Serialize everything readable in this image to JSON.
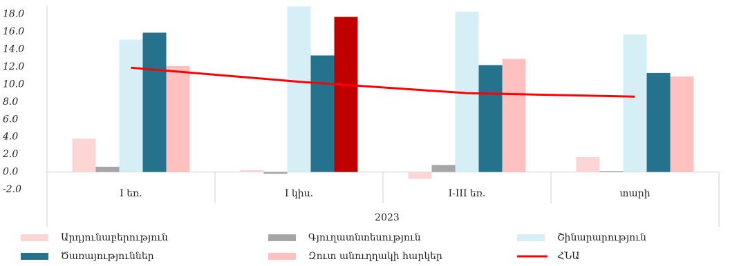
{
  "chart_data": {
    "type": "bar",
    "x_label": "2023",
    "categories": [
      "I եռ.",
      "I կիս.",
      "I-III եռ.",
      "տարի"
    ],
    "series": [
      {
        "name": "Արդյունաբերություն",
        "color": "#fcd5d5",
        "values": [
          3.8,
          0.2,
          -0.8,
          1.7
        ]
      },
      {
        "name": "Գյուղատնտեսություն",
        "color": "#a6a6a6",
        "values": [
          0.6,
          -0.2,
          0.8,
          0.1
        ]
      },
      {
        "name": "Շինարարություն",
        "color": "#d6eef5",
        "values": [
          15.1,
          18.9,
          18.3,
          15.7
        ]
      },
      {
        "name": "Ծառայություններ",
        "color": "#24728c",
        "values": [
          15.9,
          13.3,
          12.2,
          11.3
        ]
      },
      {
        "name": "Զուտ անուղղակի հարկեր",
        "color": "#ffc0c0",
        "point_colors": [
          "#ffc0c0",
          "#c00000",
          "#ffc0c0",
          "#ffc0c0"
        ],
        "values": [
          12.1,
          17.7,
          12.9,
          10.9
        ]
      },
      {
        "name": "ՀՆԱ",
        "type": "line",
        "color": "#ff0000",
        "values": [
          11.9,
          10.3,
          9.0,
          8.6
        ]
      }
    ],
    "ylim": [
      -2.0,
      19.0
    ],
    "yticks": [
      {
        "value": -2,
        "label": "-2.0"
      },
      {
        "value": 0,
        "label": "0.0"
      },
      {
        "value": 2,
        "label": "2.0"
      },
      {
        "value": 4,
        "label": "4.0"
      },
      {
        "value": 6,
        "label": "6.0"
      },
      {
        "value": 8,
        "label": "8.0"
      },
      {
        "value": 10,
        "label": "10.0"
      },
      {
        "value": 12,
        "label": "12.0"
      },
      {
        "value": 14,
        "label": "14.0"
      },
      {
        "value": 16,
        "label": "16.0"
      },
      {
        "value": 18,
        "label": "18.0"
      }
    ]
  }
}
